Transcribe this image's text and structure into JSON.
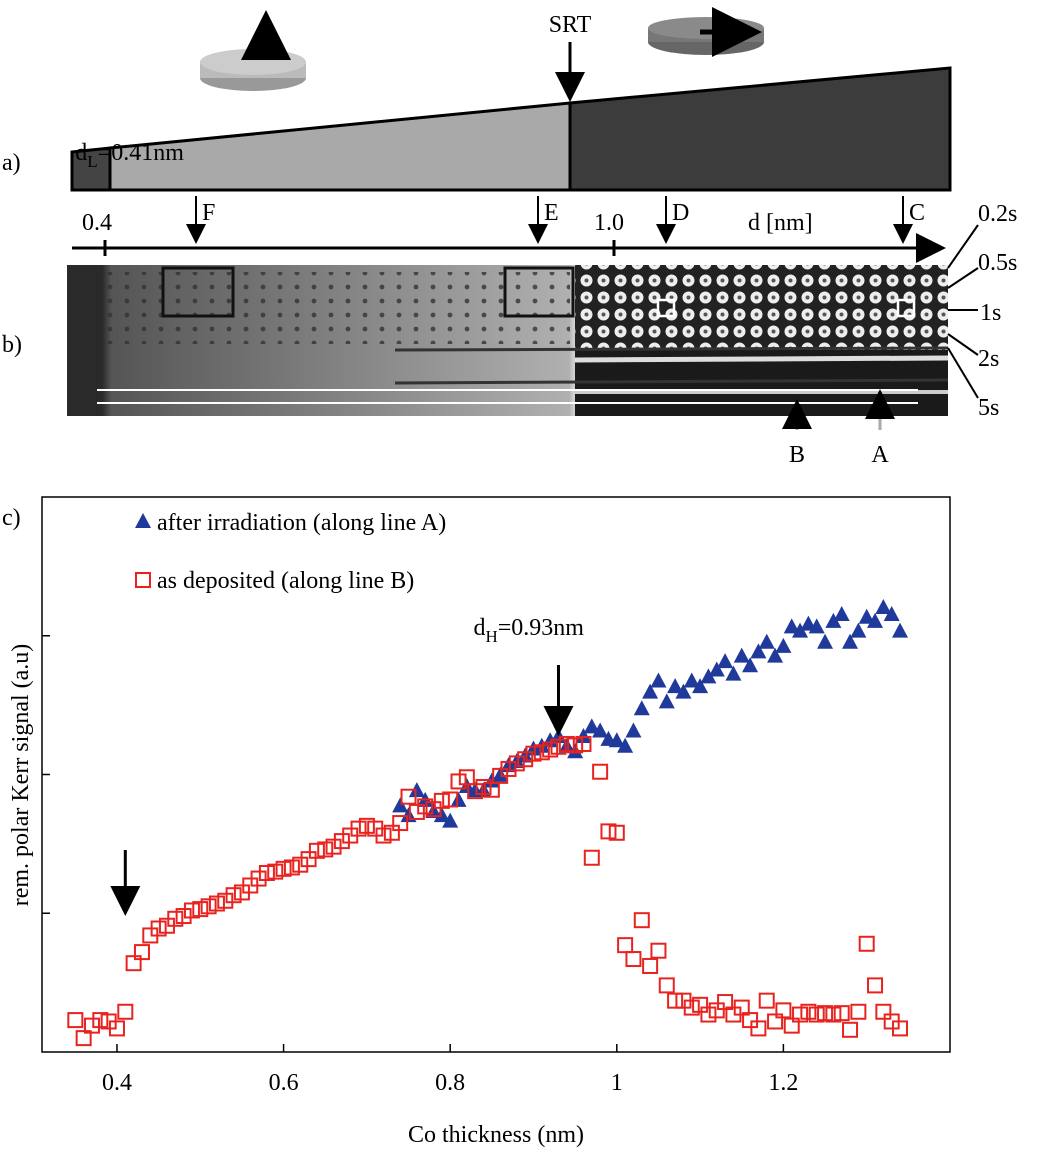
{
  "figure": {
    "panel_labels": [
      "a)",
      "b)",
      "c)"
    ],
    "transition_label": "SRT",
    "scale_ticks": [
      "0.4",
      "1.0"
    ],
    "scale_label": "d [nm]",
    "positions": [
      "F",
      "E",
      "D",
      "C"
    ],
    "doses": [
      "0.2s",
      "0.5s",
      "1s",
      "2s",
      "5s"
    ],
    "lines": [
      "B",
      "A"
    ]
  },
  "chart_data": {
    "type": "scatter",
    "xlabel": "Co thickness (nm)",
    "ylabel": "rem. polar Kerr signal (a.u)",
    "xlim": [
      0.31,
      1.4
    ],
    "xticks": [
      0.4,
      0.6,
      0.8,
      1,
      1.2
    ],
    "ylim": [
      0,
      4
    ],
    "yticks": [
      1,
      2,
      3
    ],
    "annotations": [
      {
        "base": "d",
        "subscript": "H",
        "rest": "=0.93nm",
        "x": 0.93
      },
      {
        "base": "d",
        "subscript": "L",
        "rest": "=0.41nm",
        "x": 0.41
      }
    ],
    "series": [
      {
        "name": "after irradiation (along line A)",
        "color": "#1f3a9a",
        "marker": "triangle",
        "x": [
          0.74,
          0.75,
          0.76,
          0.77,
          0.78,
          0.79,
          0.8,
          0.81,
          0.82,
          0.83,
          0.84,
          0.85,
          0.86,
          0.87,
          0.88,
          0.89,
          0.9,
          0.91,
          0.92,
          0.93,
          0.94,
          0.95,
          0.96,
          0.97,
          0.98,
          0.99,
          1,
          1.01,
          1.02,
          1.03,
          1.04,
          1.05,
          1.06,
          1.07,
          1.08,
          1.09,
          1.1,
          1.11,
          1.12,
          1.13,
          1.14,
          1.15,
          1.16,
          1.17,
          1.18,
          1.19,
          1.2,
          1.21,
          1.22,
          1.23,
          1.24,
          1.25,
          1.26,
          1.27,
          1.28,
          1.29,
          1.3,
          1.31,
          1.32,
          1.33,
          1.34
        ],
        "values": [
          1.77,
          1.7,
          1.88,
          1.81,
          1.73,
          1.7,
          1.66,
          1.81,
          1.91,
          1.88,
          1.88,
          1.95,
          1.99,
          2.06,
          2.09,
          2.13,
          2.18,
          2.2,
          2.24,
          2.27,
          2.2,
          2.16,
          2.27,
          2.34,
          2.31,
          2.25,
          2.24,
          2.2,
          2.31,
          2.47,
          2.59,
          2.67,
          2.52,
          2.63,
          2.59,
          2.67,
          2.63,
          2.7,
          2.75,
          2.81,
          2.72,
          2.85,
          2.78,
          2.88,
          2.95,
          2.85,
          2.92,
          3.06,
          3.03,
          3.08,
          3.06,
          2.95,
          3.1,
          3.15,
          2.95,
          3.03,
          3.13,
          3.1,
          3.2,
          3.15,
          3.03
        ]
      },
      {
        "name": "as deposited (along line B)",
        "color": "#e8231f",
        "marker": "square",
        "x": [
          0.35,
          0.36,
          0.37,
          0.38,
          0.39,
          0.4,
          0.41,
          0.42,
          0.43,
          0.44,
          0.45,
          0.46,
          0.47,
          0.48,
          0.49,
          0.5,
          0.51,
          0.52,
          0.53,
          0.54,
          0.55,
          0.56,
          0.57,
          0.58,
          0.59,
          0.6,
          0.61,
          0.62,
          0.63,
          0.64,
          0.65,
          0.66,
          0.67,
          0.68,
          0.69,
          0.7,
          0.71,
          0.72,
          0.73,
          0.74,
          0.75,
          0.76,
          0.77,
          0.78,
          0.79,
          0.8,
          0.81,
          0.82,
          0.83,
          0.84,
          0.85,
          0.86,
          0.87,
          0.88,
          0.89,
          0.9,
          0.91,
          0.92,
          0.93,
          0.94,
          0.95,
          0.96,
          0.97,
          0.98,
          0.99,
          1,
          1.01,
          1.02,
          1.03,
          1.04,
          1.05,
          1.06,
          1.07,
          1.08,
          1.09,
          1.1,
          1.11,
          1.12,
          1.13,
          1.14,
          1.15,
          1.16,
          1.17,
          1.18,
          1.19,
          1.2,
          1.21,
          1.22,
          1.23,
          1.24,
          1.25,
          1.26,
          1.27,
          1.28,
          1.29,
          1.3,
          1.31,
          1.32,
          1.33,
          1.34
        ],
        "values": [
          0.23,
          0.1,
          0.19,
          0.23,
          0.22,
          0.17,
          0.29,
          0.64,
          0.72,
          0.84,
          0.89,
          0.91,
          0.96,
          0.98,
          1.02,
          1.03,
          1.05,
          1.07,
          1.09,
          1.13,
          1.15,
          1.2,
          1.25,
          1.29,
          1.3,
          1.32,
          1.33,
          1.35,
          1.39,
          1.45,
          1.46,
          1.48,
          1.52,
          1.56,
          1.61,
          1.63,
          1.61,
          1.56,
          1.58,
          1.65,
          1.84,
          1.73,
          1.77,
          1.75,
          1.81,
          1.82,
          1.95,
          1.98,
          1.88,
          1.91,
          1.89,
          1.99,
          2.04,
          2.08,
          2.11,
          2.15,
          2.16,
          2.18,
          2.2,
          2.22,
          2.21,
          2.22,
          1.4,
          2.02,
          1.59,
          1.58,
          0.77,
          0.67,
          0.95,
          0.62,
          0.73,
          0.48,
          0.37,
          0.37,
          0.32,
          0.34,
          0.27,
          0.3,
          0.36,
          0.27,
          0.32,
          0.23,
          0.17,
          0.37,
          0.22,
          0.3,
          0.19,
          0.27,
          0.29,
          0.27,
          0.28,
          0.27,
          0.28,
          0.16,
          0.29,
          0.78,
          0.48,
          0.29,
          0.22,
          0.17
        ]
      }
    ]
  }
}
